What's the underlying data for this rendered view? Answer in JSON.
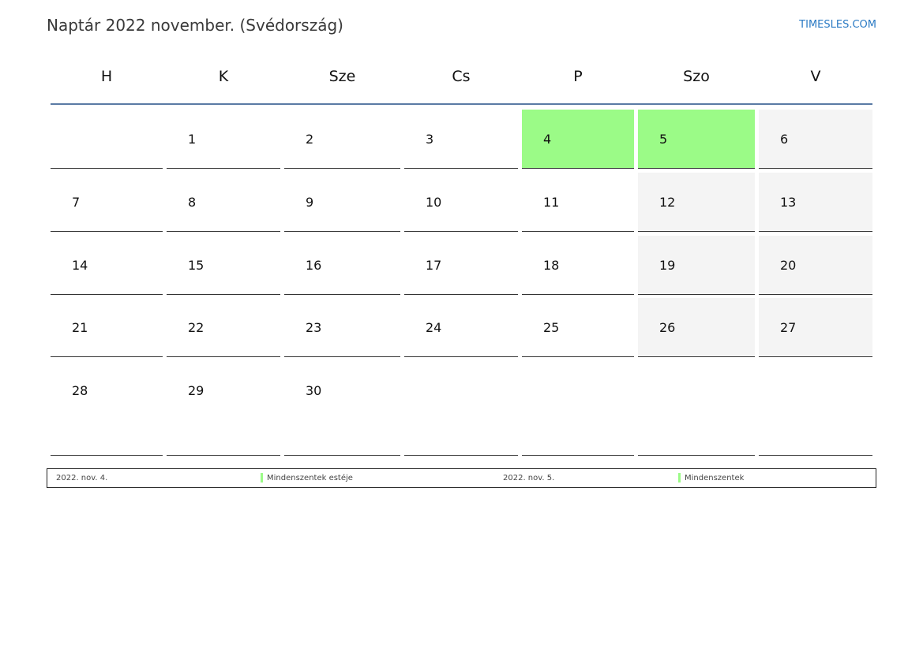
{
  "title": "Naptár 2022 november. (Svédország)",
  "brand": "TIMESLES.COM",
  "weekdays": [
    "H",
    "K",
    "Sze",
    "Cs",
    "P",
    "Szo",
    "V"
  ],
  "weeks": [
    [
      null,
      1,
      2,
      3,
      4,
      5,
      6
    ],
    [
      7,
      8,
      9,
      10,
      11,
      12,
      13
    ],
    [
      14,
      15,
      16,
      17,
      18,
      19,
      20
    ],
    [
      21,
      22,
      23,
      24,
      25,
      26,
      27
    ],
    [
      28,
      29,
      30,
      null,
      null,
      null,
      null
    ]
  ],
  "holidays": [
    4,
    5
  ],
  "colors": {
    "holiday": "#9bfb87",
    "weekend": "#f4f4f4",
    "header_line": "#5a7aa5",
    "brand": "#2a7ac4"
  },
  "legend": [
    {
      "date": "2022. nov. 4.",
      "name": "Mindenszentek estéje"
    },
    {
      "date": "2022. nov. 5.",
      "name": "Mindenszentek"
    }
  ]
}
